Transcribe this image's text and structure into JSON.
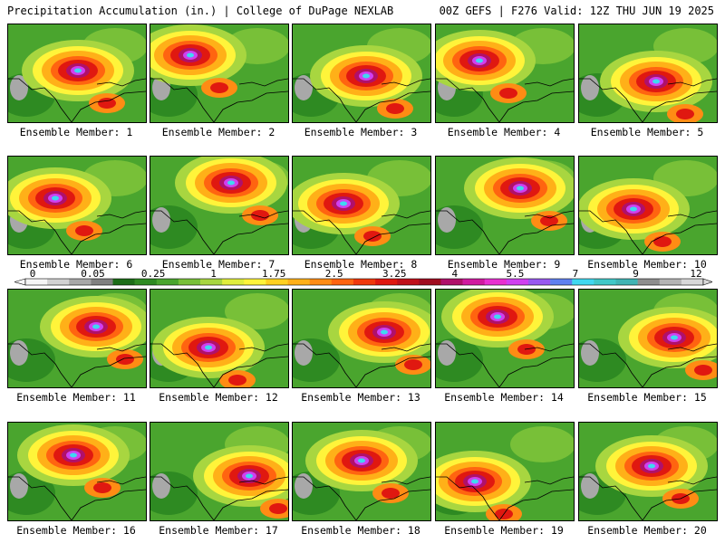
{
  "header": {
    "left": "Precipitation Accumulation (in.) | College of DuPage NEXLAB",
    "right": "00Z GEFS | F276 Valid: 12Z THU JUN 19 2025"
  },
  "member_prefix": "Ensemble Member:",
  "members": [
    "1",
    "2",
    "3",
    "4",
    "5",
    "6",
    "7",
    "8",
    "9",
    "10",
    "11",
    "12",
    "13",
    "14",
    "15",
    "16",
    "17",
    "18",
    "19",
    "20"
  ],
  "colorbar": {
    "labels": [
      "0",
      "0.05",
      "0.25",
      "1",
      "1.75",
      "2.5",
      "3.25",
      "4",
      "5.5",
      "7",
      "9",
      "12"
    ],
    "colors": [
      "#f5f5f5",
      "#d2d2d2",
      "#a8a8a8",
      "#808080",
      "#1c6d18",
      "#2e8a22",
      "#4aa52e",
      "#78c038",
      "#a8d640",
      "#e0ee3c",
      "#fff43a",
      "#ffd020",
      "#ffb018",
      "#ff8c14",
      "#ff6410",
      "#f0380c",
      "#e01810",
      "#c0101a",
      "#a00c20",
      "#b0106a",
      "#d01aa0",
      "#e830d0",
      "#d040f0",
      "#9858f0",
      "#6080f0",
      "#40d8f0",
      "#40c8c8",
      "#40b4b4",
      "#8e8e8e",
      "#b4b4b4",
      "#d8d8d8"
    ]
  }
}
